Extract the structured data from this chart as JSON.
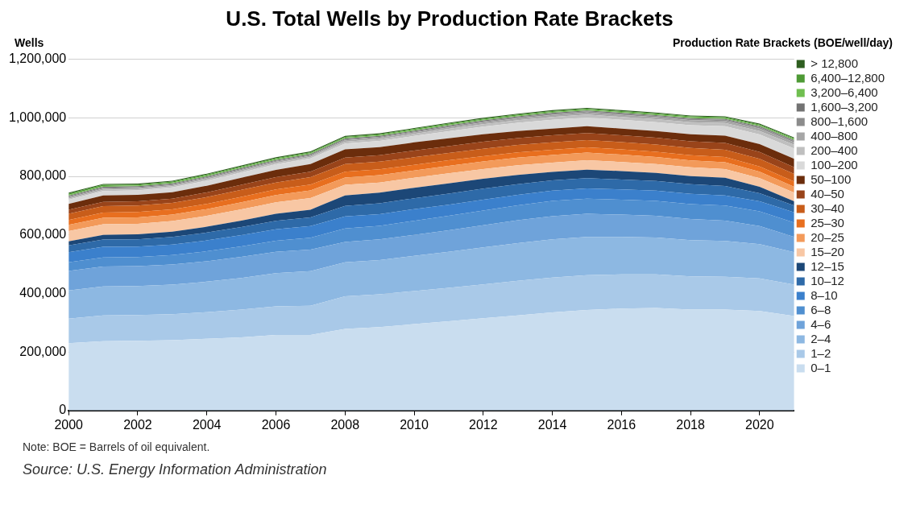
{
  "chart_data": {
    "type": "area",
    "title": "U.S. Total Wells by Production Rate Brackets",
    "ylabel": "Wells",
    "legend_title": "Production Rate Brackets (BOE/well/day)",
    "stacked": true,
    "legend": "right",
    "grid": "y",
    "x": [
      2000,
      2001,
      2002,
      2003,
      2004,
      2005,
      2006,
      2007,
      2008,
      2009,
      2010,
      2011,
      2012,
      2013,
      2014,
      2015,
      2016,
      2017,
      2018,
      2019,
      2020,
      2021
    ],
    "xlim": [
      2000,
      2021
    ],
    "xticks": [
      2000,
      2002,
      2004,
      2006,
      2008,
      2010,
      2012,
      2014,
      2016,
      2018,
      2020
    ],
    "ylim": [
      0,
      1200000
    ],
    "yticks": [
      0,
      {
        "value": 200000,
        "label": "200,000"
      },
      {
        "value": 400000,
        "label": "400,000"
      },
      {
        "value": 600000,
        "label": "600,000"
      },
      {
        "value": 800000,
        "label": "800,000"
      },
      {
        "value": 1000000,
        "label": "1,000,000"
      },
      {
        "value": 1200000,
        "label": "1,200,000"
      }
    ],
    "series": [
      {
        "name": "0–1",
        "color": "#c9ddef",
        "values": [
          230000,
          237000,
          238000,
          240000,
          245000,
          250000,
          258000,
          258000,
          279000,
          285000,
          295000,
          305000,
          315000,
          325000,
          335000,
          343000,
          348000,
          350000,
          345000,
          345000,
          340000,
          323000
        ]
      },
      {
        "name": "1–2",
        "color": "#a9c9e8",
        "values": [
          84000,
          88000,
          88000,
          89000,
          91000,
          95000,
          98000,
          100000,
          111000,
          112000,
          113000,
          114000,
          116000,
          118000,
          119000,
          119000,
          117000,
          115000,
          113000,
          112000,
          111000,
          107000
        ]
      },
      {
        "name": "2–4",
        "color": "#8db8e2",
        "values": [
          96000,
          99000,
          99000,
          101000,
          104000,
          108000,
          113000,
          118000,
          116000,
          117000,
          120000,
          123000,
          126000,
          129000,
          131000,
          131000,
          128000,
          126000,
          124000,
          122000,
          117000,
          111000
        ]
      },
      {
        "name": "4–6",
        "color": "#6fa3da",
        "values": [
          67000,
          68000,
          68000,
          69000,
          70000,
          72000,
          73000,
          74000,
          70000,
          71000,
          72000,
          74000,
          76000,
          78000,
          79000,
          79000,
          76000,
          74000,
          72000,
          70000,
          62000,
          52000
        ]
      },
      {
        "name": "6–8",
        "color": "#4f8fd0",
        "values": [
          29000,
          31000,
          31000,
          32000,
          34000,
          36000,
          38000,
          40000,
          46000,
          46000,
          48000,
          49000,
          50000,
          51000,
          52000,
          52000,
          51000,
          51000,
          51000,
          51000,
          50000,
          49000
        ]
      },
      {
        "name": "8–10",
        "color": "#3b80cc",
        "values": [
          35000,
          36000,
          36000,
          36000,
          37000,
          38000,
          39000,
          40000,
          41000,
          40000,
          40000,
          38000,
          37000,
          36000,
          35000,
          35000,
          35000,
          35000,
          35000,
          35000,
          35000,
          35000
        ]
      },
      {
        "name": "10–12",
        "color": "#2e6aa8",
        "values": [
          23000,
          25000,
          25000,
          26000,
          27000,
          28000,
          29000,
          30000,
          36000,
          37000,
          37000,
          38000,
          38000,
          36000,
          35000,
          35000,
          34000,
          33000,
          33000,
          32000,
          27000,
          23000
        ]
      },
      {
        "name": "12–15",
        "color": "#1c4777",
        "values": [
          14000,
          16000,
          17000,
          18000,
          20000,
          22000,
          24000,
          26000,
          36000,
          36000,
          36000,
          35000,
          34000,
          32000,
          29000,
          29000,
          29000,
          28000,
          28000,
          28000,
          22000,
          15000
        ]
      },
      {
        "name": "15–20",
        "color": "#f8c7a4",
        "values": [
          35000,
          36000,
          36000,
          36000,
          37000,
          38000,
          39000,
          40000,
          36000,
          35000,
          34000,
          34000,
          33000,
          33000,
          32000,
          32000,
          31000,
          30000,
          30000,
          30000,
          30000,
          29000
        ]
      },
      {
        "name": "20–25",
        "color": "#f39a5a",
        "values": [
          21000,
          22000,
          22000,
          22000,
          23000,
          24000,
          25000,
          26000,
          25000,
          25000,
          25000,
          26000,
          26000,
          26000,
          26000,
          26000,
          25000,
          24000,
          23000,
          23000,
          22000,
          20000
        ]
      },
      {
        "name": "25–30",
        "color": "#e86f1f",
        "values": [
          17000,
          18000,
          18000,
          18000,
          18000,
          19000,
          19000,
          20000,
          20000,
          20000,
          19000,
          19000,
          18000,
          18000,
          18000,
          18000,
          18000,
          18000,
          18000,
          18000,
          18000,
          18000
        ]
      },
      {
        "name": "30–40",
        "color": "#c85d1a",
        "values": [
          21000,
          22000,
          22000,
          22000,
          23000,
          24000,
          24000,
          25000,
          26000,
          26000,
          26000,
          25000,
          25000,
          25000,
          25000,
          25000,
          25000,
          25000,
          25000,
          25000,
          26000,
          26000
        ]
      },
      {
        "name": "40–50",
        "color": "#99441a",
        "values": [
          14000,
          15000,
          15000,
          15000,
          16000,
          17000,
          18000,
          19000,
          22000,
          22000,
          23000,
          23000,
          24000,
          24000,
          24000,
          24000,
          23000,
          23000,
          23000,
          23000,
          23000,
          23000
        ]
      },
      {
        "name": "50–100",
        "color": "#6b2d0c",
        "values": [
          20000,
          22000,
          22000,
          22000,
          23000,
          24000,
          25000,
          26000,
          28000,
          28000,
          28000,
          27000,
          26000,
          24000,
          23000,
          23000,
          23000,
          23000,
          24000,
          25000,
          27000,
          29000
        ]
      },
      {
        "name": "100–200",
        "color": "#d9d9d9",
        "values": [
          14000,
          15000,
          15000,
          16000,
          17000,
          18000,
          19000,
          19000,
          20000,
          21000,
          22000,
          24000,
          26000,
          28000,
          30000,
          30000,
          30000,
          30000,
          31000,
          32000,
          33000,
          35000
        ]
      },
      {
        "name": "200–400",
        "color": "#bfbfbf",
        "values": [
          4000,
          4000,
          4000,
          4000,
          5000,
          5000,
          5000,
          5000,
          6000,
          6000,
          7000,
          8000,
          8000,
          9000,
          10000,
          10000,
          10000,
          10000,
          10000,
          11000,
          12000,
          13000
        ]
      },
      {
        "name": "400–800",
        "color": "#a6a6a6",
        "values": [
          4000,
          4000,
          4000,
          4000,
          4000,
          4000,
          4000,
          4000,
          5000,
          5000,
          5000,
          5000,
          6000,
          6000,
          7000,
          7000,
          7000,
          7000,
          7000,
          7000,
          8000,
          8000
        ]
      },
      {
        "name": "800–1,600",
        "color": "#8c8c8c",
        "values": [
          3000,
          3000,
          3000,
          3000,
          3000,
          3000,
          3000,
          3000,
          3000,
          3000,
          3000,
          4000,
          4000,
          4000,
          4000,
          4000,
          4000,
          4000,
          4000,
          4000,
          5000,
          5000
        ]
      },
      {
        "name": "1,600–3,200",
        "color": "#737373",
        "values": [
          3000,
          3000,
          3000,
          3000,
          3000,
          3000,
          3000,
          3000,
          3000,
          3000,
          3000,
          3000,
          3000,
          3000,
          3000,
          3000,
          3000,
          3000,
          3000,
          3000,
          3000,
          3000
        ]
      },
      {
        "name": "3,200–6,400",
        "color": "#70bf50",
        "values": [
          3000,
          3000,
          3000,
          3000,
          3000,
          3000,
          3000,
          3000,
          3000,
          3000,
          3000,
          3000,
          3000,
          3000,
          3000,
          3000,
          3000,
          3000,
          3000,
          3000,
          3000,
          3000
        ]
      },
      {
        "name": "6,400–12,800",
        "color": "#4e9a35",
        "values": [
          4000,
          4000,
          3000,
          3000,
          3000,
          3000,
          3000,
          3000,
          3000,
          3000,
          3000,
          3000,
          3000,
          3000,
          3000,
          3000,
          3000,
          3000,
          3000,
          3000,
          3000,
          3000
        ]
      },
      {
        "name": "> 12,800",
        "color": "#2e5e20",
        "values": [
          3000,
          3000,
          3000,
          3000,
          3000,
          3000,
          3000,
          3000,
          3000,
          3000,
          3000,
          3000,
          3000,
          3000,
          3000,
          3000,
          3000,
          3000,
          3000,
          3000,
          3000,
          3000
        ]
      }
    ],
    "annotations": [
      "Note: BOE = Barrels of oil equivalent.",
      "Source: U.S. Energy Information Administration"
    ]
  }
}
